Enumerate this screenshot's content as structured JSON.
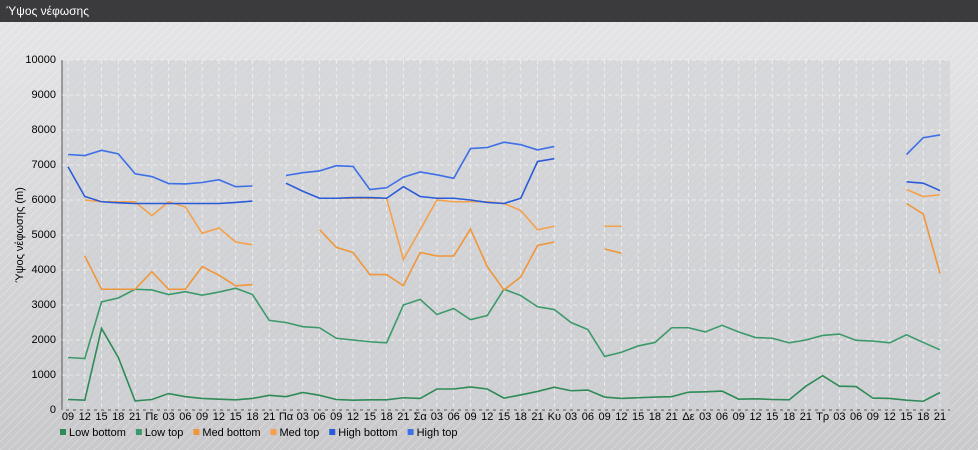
{
  "chart_data": {
    "type": "line",
    "title": "Ύψος νέφωσης",
    "y_label": "Ύψος νέφωσης (m)",
    "categories": [
      "09",
      "12",
      "15",
      "18",
      "21",
      "Πε",
      "03",
      "06",
      "09",
      "12",
      "15",
      "18",
      "21",
      "Πα",
      "03",
      "06",
      "09",
      "12",
      "15",
      "18",
      "21",
      "Σα",
      "03",
      "06",
      "09",
      "12",
      "15",
      "18",
      "21",
      "Κυ",
      "03",
      "06",
      "09",
      "12",
      "15",
      "18",
      "21",
      "Δε",
      "03",
      "06",
      "09",
      "12",
      "15",
      "18",
      "21",
      "Τρ",
      "03",
      "06",
      "09",
      "12",
      "15",
      "18",
      "21"
    ],
    "ylim": [
      0,
      10000
    ],
    "yticks": [
      0,
      1000,
      2000,
      3000,
      4000,
      5000,
      6000,
      7000,
      8000,
      9000,
      10000
    ],
    "grid": true,
    "series": [
      {
        "name": "Low bottom",
        "color": "#2e8b57",
        "values": [
          300,
          280,
          2330,
          1500,
          260,
          300,
          470,
          380,
          330,
          310,
          290,
          330,
          420,
          380,
          500,
          420,
          300,
          280,
          290,
          290,
          350,
          330,
          600,
          600,
          660,
          600,
          340,
          430,
          530,
          650,
          550,
          570,
          370,
          330,
          350,
          370,
          380,
          510,
          520,
          540,
          310,
          320,
          300,
          290,
          680,
          980,
          680,
          670,
          340,
          330,
          280,
          250,
          500
        ]
      },
      {
        "name": "Low top",
        "color": "#3c9a6a",
        "values": [
          1500,
          1470,
          3090,
          3200,
          3450,
          3430,
          3300,
          3380,
          3280,
          3370,
          3480,
          3300,
          2560,
          2500,
          2380,
          2350,
          2050,
          2000,
          1950,
          1920,
          3000,
          3160,
          2730,
          2900,
          2580,
          2700,
          3450,
          3270,
          2950,
          2870,
          2500,
          2300,
          1530,
          1650,
          1830,
          1930,
          2350,
          2350,
          2230,
          2420,
          2230,
          2070,
          2050,
          1920,
          2000,
          2130,
          2170,
          1990,
          1970,
          1920,
          2150,
          1930,
          1720
        ]
      },
      {
        "name": "Med bottom",
        "color": "#f0963a",
        "values": [
          null,
          4400,
          3450,
          3450,
          3450,
          3950,
          3450,
          3450,
          4100,
          3850,
          3550,
          3580,
          null,
          null,
          null,
          5150,
          4650,
          4500,
          3870,
          3870,
          3550,
          4500,
          4400,
          4400,
          5170,
          4100,
          3430,
          3800,
          4700,
          4800,
          null,
          null,
          4600,
          4480,
          null,
          null,
          null,
          null,
          null,
          null,
          null,
          null,
          null,
          null,
          null,
          null,
          null,
          null,
          null,
          null,
          5900,
          5600,
          3900
        ]
      },
      {
        "name": "Med top",
        "color": "#f5a04a",
        "values": [
          null,
          6000,
          5950,
          5950,
          5950,
          5550,
          5950,
          5800,
          5050,
          5200,
          4800,
          4720,
          null,
          null,
          null,
          null,
          6050,
          6050,
          6050,
          6050,
          4300,
          5150,
          6000,
          5950,
          5950,
          5950,
          5900,
          5700,
          5150,
          5250,
          null,
          null,
          5250,
          5250,
          null,
          null,
          null,
          null,
          null,
          null,
          null,
          null,
          null,
          null,
          null,
          null,
          null,
          null,
          null,
          null,
          6300,
          6100,
          6150
        ]
      },
      {
        "name": "High bottom",
        "color": "#2a5bd7",
        "values": [
          6950,
          6100,
          5950,
          5920,
          5900,
          5900,
          5900,
          5900,
          5900,
          5900,
          5930,
          5970,
          null,
          6480,
          6250,
          6050,
          6050,
          6070,
          6070,
          6050,
          6380,
          6100,
          6050,
          6050,
          6000,
          5930,
          5900,
          6050,
          7100,
          7180,
          null,
          null,
          null,
          null,
          null,
          null,
          null,
          null,
          null,
          null,
          null,
          null,
          null,
          null,
          null,
          null,
          null,
          null,
          null,
          null,
          6520,
          6480,
          6270
        ]
      },
      {
        "name": "High top",
        "color": "#3d6fe6",
        "values": [
          7300,
          7270,
          7420,
          7320,
          6750,
          6670,
          6470,
          6460,
          6500,
          6580,
          6380,
          6400,
          null,
          6700,
          6780,
          6830,
          6980,
          6960,
          6300,
          6350,
          6650,
          6800,
          6720,
          6620,
          7470,
          7500,
          7650,
          7580,
          7430,
          7530,
          null,
          null,
          null,
          null,
          null,
          null,
          null,
          null,
          null,
          null,
          null,
          null,
          null,
          null,
          null,
          null,
          null,
          null,
          null,
          null,
          7300,
          7780,
          7860
        ]
      }
    ]
  }
}
